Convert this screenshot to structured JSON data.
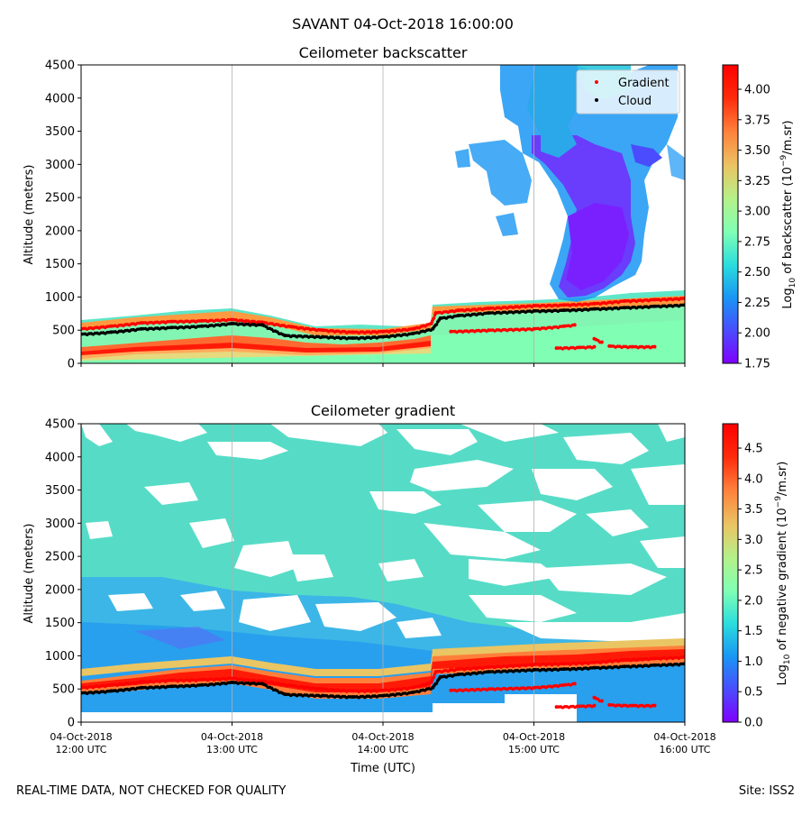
{
  "page": {
    "suptitle": "SAVANT 04-Oct-2018 16:00:00",
    "footer_left": "REAL-TIME DATA, NOT CHECKED FOR QUALITY",
    "footer_right": "Site: ISS2",
    "xlabel": "Time (UTC)"
  },
  "colors": {
    "rainbow": [
      "#8000ff",
      "#4a4cfd",
      "#1996f3",
      "#2adddd",
      "#80ffb4",
      "#b4f18a",
      "#eac563",
      "#ff7f3a",
      "#ff2a0b",
      "#ff0000"
    ],
    "gradient_marker": "#ff0000",
    "cloud_marker": "#000000",
    "grid": "#b0b0b0"
  },
  "chart_data": [
    {
      "type": "heatmap",
      "title": "Ceilometer backscatter",
      "ylabel": "Altitude (meters)",
      "ylim": [
        0,
        4500
      ],
      "yticks": [
        "0",
        "500",
        "1000",
        "1500",
        "2000",
        "2500",
        "3000",
        "3500",
        "4000",
        "4500"
      ],
      "xticks": [
        {
          "date": "04-Oct-2018",
          "time": "12:00 UTC"
        },
        {
          "date": "04-Oct-2018",
          "time": "13:00 UTC"
        },
        {
          "date": "04-Oct-2018",
          "time": "14:00 UTC"
        },
        {
          "date": "04-Oct-2018",
          "time": "15:00 UTC"
        },
        {
          "date": "04-Oct-2018",
          "time": "16:00 UTC"
        }
      ],
      "xlim_hours": [
        12,
        16
      ],
      "colorbar": {
        "label": "Log10 of backscatter (10^-9/m.sr)",
        "label_parts": {
          "pre": "Log",
          "sub": "10",
          "mid": " of backscatter (10",
          "sup": "−9",
          "post": "/m.sr)"
        },
        "min": 1.75,
        "max": 4.2,
        "ticks": [
          "1.75",
          "2.00",
          "2.25",
          "2.50",
          "2.75",
          "3.00",
          "3.25",
          "3.50",
          "3.75",
          "4.00"
        ]
      },
      "legend": {
        "position": "upper-right",
        "entries": [
          "Gradient",
          "Cloud"
        ]
      },
      "series": [
        {
          "name": "Gradient",
          "points": [
            [
              12.0,
              520
            ],
            [
              12.2,
              560
            ],
            [
              12.4,
              610
            ],
            [
              12.6,
              630
            ],
            [
              12.8,
              640
            ],
            [
              13.0,
              660
            ],
            [
              13.2,
              620
            ],
            [
              13.4,
              550
            ],
            [
              13.6,
              500
            ],
            [
              13.8,
              470
            ],
            [
              14.0,
              480
            ],
            [
              14.2,
              520
            ],
            [
              14.32,
              600
            ],
            [
              14.35,
              760
            ],
            [
              14.5,
              800
            ],
            [
              14.7,
              830
            ],
            [
              15.0,
              870
            ],
            [
              15.2,
              880
            ],
            [
              15.4,
              900
            ],
            [
              15.6,
              940
            ],
            [
              15.8,
              960
            ],
            [
              16.0,
              980
            ]
          ]
        },
        {
          "name": "Cloud",
          "points": [
            [
              12.0,
              440
            ],
            [
              12.2,
              470
            ],
            [
              12.4,
              520
            ],
            [
              12.6,
              540
            ],
            [
              12.8,
              560
            ],
            [
              13.0,
              600
            ],
            [
              13.2,
              580
            ],
            [
              13.35,
              420
            ],
            [
              13.6,
              400
            ],
            [
              13.8,
              380
            ],
            [
              14.0,
              400
            ],
            [
              14.2,
              450
            ],
            [
              14.33,
              520
            ],
            [
              14.38,
              680
            ],
            [
              14.5,
              720
            ],
            [
              14.7,
              760
            ],
            [
              15.0,
              790
            ],
            [
              15.2,
              800
            ],
            [
              15.4,
              820
            ],
            [
              15.6,
              840
            ],
            [
              15.8,
              860
            ],
            [
              16.0,
              880
            ]
          ]
        },
        {
          "name": "Gradient",
          "points": [
            [
              14.45,
              480
            ],
            [
              14.7,
              500
            ],
            [
              15.0,
              520
            ],
            [
              15.2,
              560
            ],
            [
              15.27,
              580
            ]
          ]
        },
        {
          "name": "Gradient",
          "points": [
            [
              15.15,
              230
            ],
            [
              15.3,
              240
            ],
            [
              15.4,
              250
            ]
          ]
        },
        {
          "name": "Gradient",
          "points": [
            [
              15.4,
              370
            ],
            [
              15.45,
              320
            ]
          ]
        },
        {
          "name": "Gradient",
          "points": [
            [
              15.5,
              260
            ],
            [
              15.65,
              250
            ],
            [
              15.8,
              250
            ]
          ]
        }
      ]
    },
    {
      "type": "heatmap",
      "title": "Ceilometer gradient",
      "ylabel": "Altitude (meters)",
      "ylim": [
        0,
        4500
      ],
      "yticks": [
        "0",
        "500",
        "1000",
        "1500",
        "2000",
        "2500",
        "3000",
        "3500",
        "4000",
        "4500"
      ],
      "xticks": [
        {
          "date": "04-Oct-2018",
          "time": "12:00 UTC"
        },
        {
          "date": "04-Oct-2018",
          "time": "13:00 UTC"
        },
        {
          "date": "04-Oct-2018",
          "time": "14:00 UTC"
        },
        {
          "date": "04-Oct-2018",
          "time": "15:00 UTC"
        },
        {
          "date": "04-Oct-2018",
          "time": "16:00 UTC"
        }
      ],
      "xlim_hours": [
        12,
        16
      ],
      "colorbar": {
        "label": "Log10 of negative gradient (10^-9/m.sr)",
        "label_parts": {
          "pre": "Log",
          "sub": "10",
          "mid": " of negative gradient (10",
          "sup": "−9",
          "post": "/m.sr)"
        },
        "min": 0.0,
        "max": 4.9,
        "ticks": [
          "0.0",
          "0.5",
          "1.0",
          "1.5",
          "2.0",
          "2.5",
          "3.0",
          "3.5",
          "4.0",
          "4.5"
        ]
      },
      "series": [
        {
          "name": "Gradient",
          "points": [
            [
              12.0,
              520
            ],
            [
              12.2,
              560
            ],
            [
              12.4,
              610
            ],
            [
              12.6,
              630
            ],
            [
              12.8,
              640
            ],
            [
              13.0,
              660
            ],
            [
              13.2,
              620
            ],
            [
              13.4,
              550
            ],
            [
              13.6,
              500
            ],
            [
              13.8,
              470
            ],
            [
              14.0,
              480
            ],
            [
              14.2,
              520
            ],
            [
              14.32,
              600
            ],
            [
              14.35,
              760
            ],
            [
              14.5,
              800
            ],
            [
              14.7,
              830
            ],
            [
              15.0,
              870
            ],
            [
              15.2,
              880
            ],
            [
              15.4,
              900
            ],
            [
              15.6,
              940
            ],
            [
              15.8,
              960
            ],
            [
              16.0,
              980
            ]
          ]
        },
        {
          "name": "Cloud",
          "points": [
            [
              12.0,
              440
            ],
            [
              12.2,
              470
            ],
            [
              12.4,
              520
            ],
            [
              12.6,
              540
            ],
            [
              12.8,
              560
            ],
            [
              13.0,
              600
            ],
            [
              13.2,
              580
            ],
            [
              13.35,
              420
            ],
            [
              13.6,
              400
            ],
            [
              13.8,
              380
            ],
            [
              14.0,
              400
            ],
            [
              14.2,
              450
            ],
            [
              14.33,
              520
            ],
            [
              14.38,
              680
            ],
            [
              14.5,
              720
            ],
            [
              14.7,
              760
            ],
            [
              15.0,
              790
            ],
            [
              15.2,
              800
            ],
            [
              15.4,
              820
            ],
            [
              15.6,
              840
            ],
            [
              15.8,
              860
            ],
            [
              16.0,
              880
            ]
          ]
        },
        {
          "name": "Gradient",
          "points": [
            [
              14.45,
              480
            ],
            [
              14.7,
              500
            ],
            [
              15.0,
              520
            ],
            [
              15.2,
              560
            ],
            [
              15.27,
              580
            ]
          ]
        },
        {
          "name": "Gradient",
          "points": [
            [
              15.15,
              230
            ],
            [
              15.3,
              240
            ],
            [
              15.4,
              250
            ]
          ]
        },
        {
          "name": "Gradient",
          "points": [
            [
              15.4,
              370
            ],
            [
              15.45,
              320
            ]
          ]
        },
        {
          "name": "Gradient",
          "points": [
            [
              15.5,
              260
            ],
            [
              15.65,
              250
            ],
            [
              15.8,
              250
            ]
          ]
        }
      ]
    }
  ]
}
